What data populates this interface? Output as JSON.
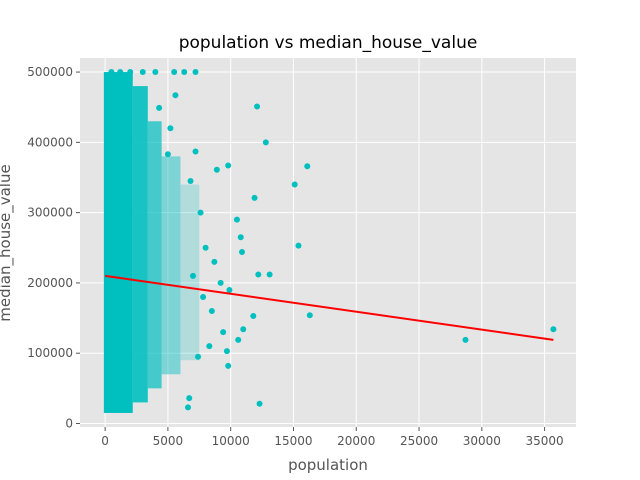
{
  "chart_data": {
    "type": "scatter",
    "title": "population vs median_house_value",
    "xlabel": "population",
    "ylabel": "median_house_value",
    "xlim": [
      -2000,
      37500
    ],
    "ylim": [
      -5000,
      520000
    ],
    "xticks": [
      0,
      5000,
      10000,
      15000,
      20000,
      25000,
      30000,
      35000
    ],
    "yticks": [
      0,
      100000,
      200000,
      300000,
      400000,
      500000
    ],
    "grid": true,
    "colors": {
      "background": "#e5e5e5",
      "points": "#00bfbf",
      "fit_line": "#ff0000"
    },
    "series": [
      {
        "type": "scatter",
        "points": [
          [
            500,
            500001
          ],
          [
            1200,
            500001
          ],
          [
            2000,
            500001
          ],
          [
            3000,
            500001
          ],
          [
            4000,
            500001
          ],
          [
            5500,
            500001
          ],
          [
            6300,
            500001
          ],
          [
            7200,
            500001
          ],
          [
            12100,
            451000
          ],
          [
            12800,
            400000
          ],
          [
            15100,
            340000
          ],
          [
            16100,
            366000
          ],
          [
            15400,
            253000
          ],
          [
            16300,
            154000
          ],
          [
            12300,
            28000
          ],
          [
            6700,
            36000
          ],
          [
            6600,
            23000
          ],
          [
            9800,
            82000
          ],
          [
            9700,
            103000
          ],
          [
            10600,
            119000
          ],
          [
            11000,
            134000
          ],
          [
            11800,
            153000
          ],
          [
            12200,
            212000
          ],
          [
            13100,
            212000
          ],
          [
            10900,
            244000
          ],
          [
            10800,
            265000
          ],
          [
            10500,
            290000
          ],
          [
            11900,
            321000
          ],
          [
            9800,
            367000
          ],
          [
            8900,
            361000
          ],
          [
            7200,
            387000
          ],
          [
            5000,
            383000
          ],
          [
            5200,
            420000
          ],
          [
            4300,
            449000
          ],
          [
            5600,
            467000
          ],
          [
            28700,
            119000
          ],
          [
            35700,
            134000
          ],
          [
            7800,
            180000
          ],
          [
            8500,
            160000
          ],
          [
            9200,
            200000
          ],
          [
            9400,
            130000
          ],
          [
            8000,
            250000
          ],
          [
            7600,
            300000
          ],
          [
            6800,
            345000
          ],
          [
            7000,
            210000
          ],
          [
            8700,
            230000
          ],
          [
            9900,
            190000
          ],
          [
            8300,
            110000
          ],
          [
            7400,
            95000
          ]
        ]
      },
      {
        "type": "line",
        "points": [
          [
            0,
            210000
          ],
          [
            35700,
            119000
          ]
        ]
      }
    ]
  }
}
